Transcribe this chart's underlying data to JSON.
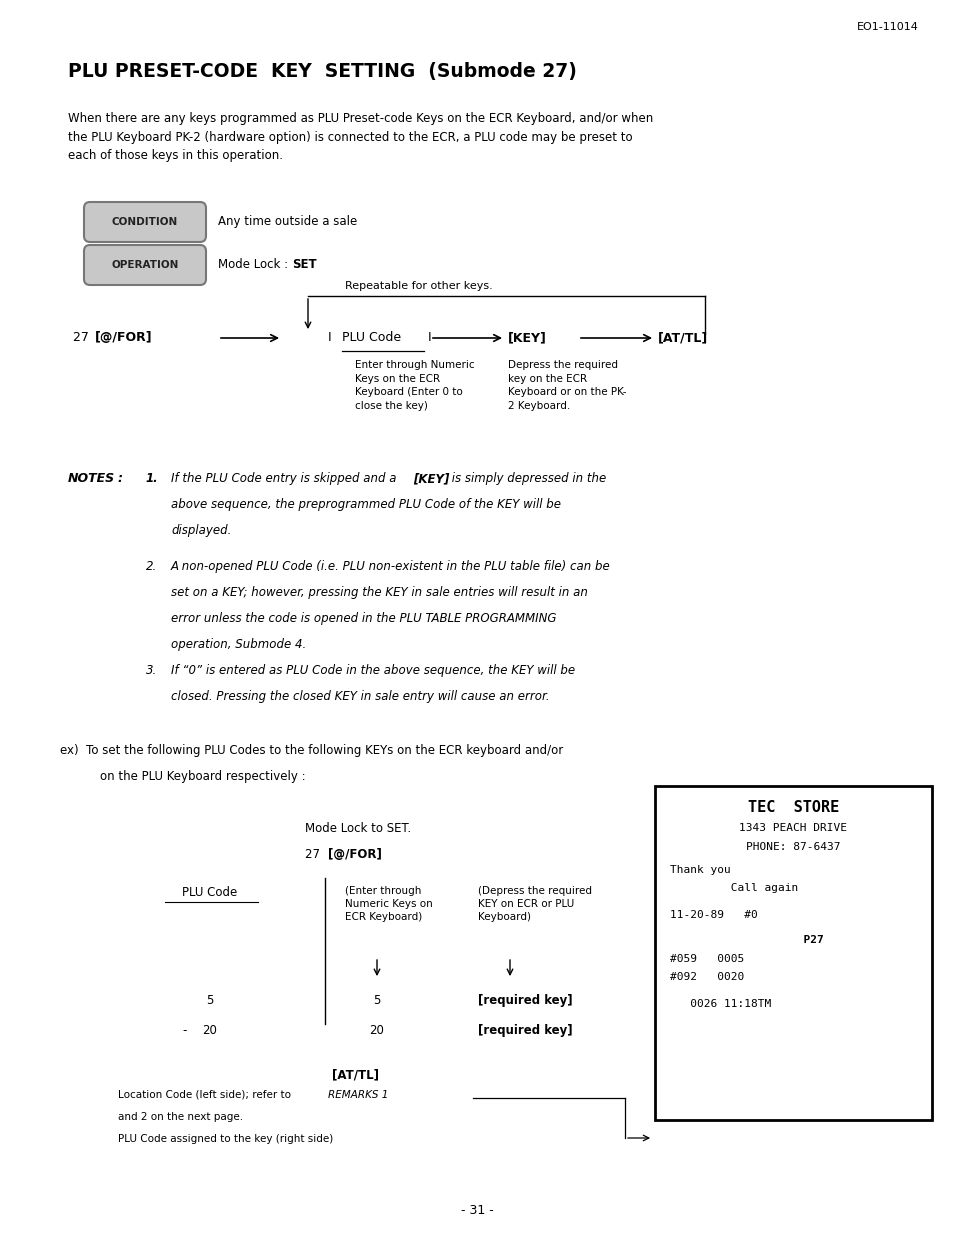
{
  "bg_color": "#ffffff",
  "page_width": 9.54,
  "page_height": 12.39,
  "header_ref": "EO1-11014",
  "title": "PLU PRESET-CODE  KEY  SETTING  (Submode 27)",
  "intro_text": "When there are any keys programmed as PLU Preset-code Keys on the ECR Keyboard, and/or when\nthe PLU Keyboard PK-2 (hardware option) is connected to the ECR, a PLU code may be preset to\neach of those keys in this operation.",
  "condition_label": "CONDITION",
  "condition_text": "Any time outside a sale",
  "operation_label": "OPERATION",
  "operation_text_prefix": "Mode Lock : ",
  "operation_text_bold": "SET",
  "repeatable_text": "Repeatable for other keys.",
  "flow_note1": "Enter through Numeric\nKeys on the ECR\nKeyboard (Enter 0 to\nclose the key)",
  "flow_note2": "Depress the required\nkey on the ECR\nKeyboard or on the PK-\n2 Keyboard.",
  "receipt_lines": [
    "TEC  STORE",
    "1343 PEACH DRIVE",
    "PHONE: 87-6437",
    "Thank you",
    "         Call again",
    "11-20-89   #0",
    "      P27",
    "#059   0005",
    "#092   0020",
    "   0026 11:18TM"
  ],
  "page_num": "- 31 -"
}
